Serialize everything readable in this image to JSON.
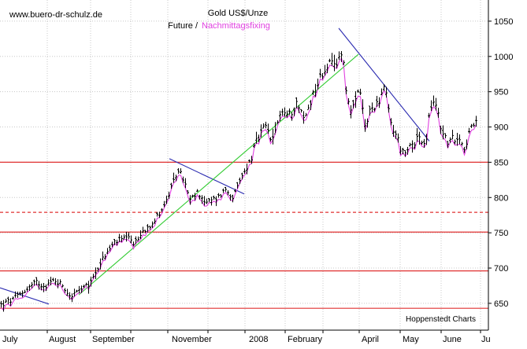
{
  "chart_data": {
    "type": "ohlc-line",
    "watermark": "www.buero-dr-schulz.de",
    "title": "Gold US$/Unze",
    "subtitle_black": "Future /",
    "subtitle_pink": "Nachmittagsfixing",
    "source": "Hoppenstedt Charts",
    "ylim": [
      612,
      1080
    ],
    "y_ticks": [
      650,
      700,
      750,
      800,
      850,
      900,
      950,
      1000,
      1050
    ],
    "x_range": [
      0,
      620
    ],
    "x_labels": [
      {
        "label": "July",
        "x": 3
      },
      {
        "label": "August",
        "x": 62
      },
      {
        "label": "September",
        "x": 117
      },
      {
        "label": "November",
        "x": 218
      },
      {
        "label": "2008",
        "x": 316
      },
      {
        "label": "February",
        "x": 365
      },
      {
        "label": "April",
        "x": 459
      },
      {
        "label": "May",
        "x": 511
      },
      {
        "label": "June",
        "x": 562
      },
      {
        "label": "Ju",
        "x": 611
      }
    ],
    "month_separators": [
      60,
      115,
      166,
      213,
      264,
      311,
      362,
      410,
      456,
      508,
      560,
      610
    ],
    "grid": true,
    "key_points": [
      {
        "x": 0,
        "y": 648
      },
      {
        "x": 15,
        "y": 655
      },
      {
        "x": 30,
        "y": 668
      },
      {
        "x": 45,
        "y": 680
      },
      {
        "x": 55,
        "y": 675
      },
      {
        "x": 68,
        "y": 683
      },
      {
        "x": 78,
        "y": 676
      },
      {
        "x": 88,
        "y": 660
      },
      {
        "x": 100,
        "y": 668
      },
      {
        "x": 112,
        "y": 676
      },
      {
        "x": 120,
        "y": 695
      },
      {
        "x": 130,
        "y": 715
      },
      {
        "x": 145,
        "y": 738
      },
      {
        "x": 160,
        "y": 742
      },
      {
        "x": 170,
        "y": 735
      },
      {
        "x": 180,
        "y": 752
      },
      {
        "x": 195,
        "y": 768
      },
      {
        "x": 210,
        "y": 795
      },
      {
        "x": 225,
        "y": 840
      },
      {
        "x": 232,
        "y": 825
      },
      {
        "x": 240,
        "y": 795
      },
      {
        "x": 250,
        "y": 808
      },
      {
        "x": 260,
        "y": 792
      },
      {
        "x": 275,
        "y": 800
      },
      {
        "x": 285,
        "y": 812
      },
      {
        "x": 295,
        "y": 800
      },
      {
        "x": 305,
        "y": 828
      },
      {
        "x": 315,
        "y": 850
      },
      {
        "x": 325,
        "y": 880
      },
      {
        "x": 335,
        "y": 900
      },
      {
        "x": 345,
        "y": 880
      },
      {
        "x": 355,
        "y": 925
      },
      {
        "x": 365,
        "y": 915
      },
      {
        "x": 375,
        "y": 935
      },
      {
        "x": 385,
        "y": 910
      },
      {
        "x": 395,
        "y": 945
      },
      {
        "x": 405,
        "y": 970
      },
      {
        "x": 415,
        "y": 990
      },
      {
        "x": 425,
        "y": 985
      },
      {
        "x": 433,
        "y": 1012
      },
      {
        "x": 440,
        "y": 935
      },
      {
        "x": 448,
        "y": 925
      },
      {
        "x": 455,
        "y": 955
      },
      {
        "x": 462,
        "y": 900
      },
      {
        "x": 470,
        "y": 925
      },
      {
        "x": 480,
        "y": 940
      },
      {
        "x": 487,
        "y": 955
      },
      {
        "x": 495,
        "y": 905
      },
      {
        "x": 505,
        "y": 878
      },
      {
        "x": 512,
        "y": 855
      },
      {
        "x": 520,
        "y": 875
      },
      {
        "x": 530,
        "y": 888
      },
      {
        "x": 538,
        "y": 868
      },
      {
        "x": 545,
        "y": 930
      },
      {
        "x": 553,
        "y": 932
      },
      {
        "x": 560,
        "y": 890
      },
      {
        "x": 570,
        "y": 878
      },
      {
        "x": 580,
        "y": 890
      },
      {
        "x": 588,
        "y": 872
      },
      {
        "x": 596,
        "y": 895
      },
      {
        "x": 604,
        "y": 906
      }
    ],
    "fixing_offsets": [
      {
        "x": 0,
        "y": -6
      },
      {
        "x": 100,
        "y": -4
      },
      {
        "x": 200,
        "y": -5
      },
      {
        "x": 300,
        "y": -5
      },
      {
        "x": 400,
        "y": -6
      },
      {
        "x": 500,
        "y": -5
      },
      {
        "x": 604,
        "y": -6
      }
    ],
    "horizontal_lines": [
      {
        "y": 643,
        "color": "#e03030",
        "style": "solid"
      },
      {
        "y": 696,
        "color": "#e03030",
        "style": "solid"
      },
      {
        "y": 751,
        "color": "#e03030",
        "style": "solid"
      },
      {
        "y": 779,
        "color": "#e03030",
        "style": "dashed"
      },
      {
        "y": 850,
        "color": "#e03030",
        "style": "solid"
      }
    ],
    "trend_lines": [
      {
        "x1": 0,
        "y1": 672,
        "x2": 62,
        "y2": 649,
        "color": "#2a2ab0"
      },
      {
        "x1": 215,
        "y1": 855,
        "x2": 310,
        "y2": 805,
        "color": "#2a2ab0"
      },
      {
        "x1": 430,
        "y1": 1040,
        "x2": 545,
        "y2": 880,
        "color": "#2a2ab0"
      },
      {
        "x1": 100,
        "y1": 662,
        "x2": 455,
        "y2": 1003,
        "color": "#33cc33"
      }
    ],
    "colors": {
      "price_bars": "#000000",
      "fixing_line": "#e040e0",
      "grid": "#c8c8c8",
      "axis": "#000000"
    }
  }
}
